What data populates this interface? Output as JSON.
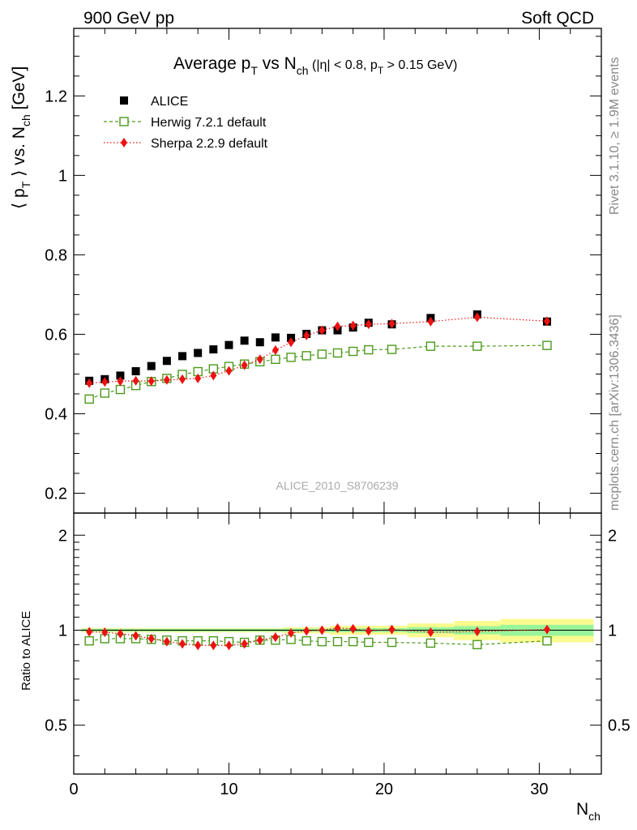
{
  "header": {
    "left": "900 GeV pp",
    "right": "Soft QCD"
  },
  "side_labels": {
    "rivet": "Rivet 3.1.10, ≥ 1.9M events",
    "mcplots": "mcplots.cern.ch [arXiv:1306.3436]"
  },
  "watermark": "ALICE_2010_S8706239",
  "chart_data": [
    {
      "type": "scatter",
      "panel": "main",
      "title": {
        "main": "Average p",
        "sub_t": "T",
        "vs": " vs N",
        "sub_ch": "ch",
        "cuts": " (|η| < 0.8, p",
        "cuts_sub": "T",
        "cuts_end": " > 0.15 GeV)"
      },
      "ylabel": {
        "open": "⟨ p",
        "sub_t": "T",
        "mid": " ⟩ vs. N",
        "sub_ch": "ch",
        "end": " [GeV]"
      },
      "xlim": [
        0,
        34
      ],
      "ylim": [
        0.15,
        1.37
      ],
      "xticks": [
        0,
        10,
        20,
        30
      ],
      "yticks": [
        0.2,
        0.4,
        0.6,
        0.8,
        1,
        1.2
      ],
      "ytick_labels": [
        "0.2",
        "0.4",
        "0.6",
        "0.8",
        "1",
        "1.2"
      ],
      "legend_position": "top-left",
      "series": [
        {
          "name": "ALICE",
          "color": "#000000",
          "marker": "filled-square",
          "x": [
            1,
            2,
            3,
            4,
            5,
            6,
            7,
            8,
            9,
            10,
            11,
            12,
            13,
            14,
            15,
            16,
            17,
            18,
            19,
            20.5,
            23,
            26,
            30.5
          ],
          "y": [
            0.483,
            0.487,
            0.496,
            0.507,
            0.52,
            0.533,
            0.545,
            0.553,
            0.562,
            0.573,
            0.584,
            0.58,
            0.592,
            0.591,
            0.601,
            0.61,
            0.61,
            0.617,
            0.629,
            0.625,
            0.641,
            0.65,
            0.632
          ]
        },
        {
          "name": "Herwig 7.2.1 default",
          "color": "#4c9a1c",
          "marker": "open-square",
          "line": "dashed",
          "x": [
            1,
            2,
            3,
            4,
            5,
            6,
            7,
            8,
            9,
            10,
            11,
            12,
            13,
            14,
            15,
            16,
            17,
            18,
            19,
            20.5,
            23,
            26,
            30.5
          ],
          "y": [
            0.437,
            0.452,
            0.461,
            0.471,
            0.481,
            0.489,
            0.499,
            0.506,
            0.513,
            0.519,
            0.525,
            0.531,
            0.537,
            0.542,
            0.546,
            0.55,
            0.553,
            0.557,
            0.561,
            0.562,
            0.57,
            0.57,
            0.572
          ]
        },
        {
          "name": "Sherpa 2.2.9 default",
          "color": "#ee1111",
          "marker": "filled-diamond",
          "line": "dotted",
          "x": [
            1,
            2,
            3,
            4,
            5,
            6,
            7,
            8,
            9,
            10,
            11,
            12,
            13,
            14,
            15,
            16,
            17,
            18,
            19,
            20.5,
            23,
            26,
            30.5
          ],
          "y": [
            0.477,
            0.48,
            0.482,
            0.483,
            0.482,
            0.485,
            0.487,
            0.489,
            0.496,
            0.508,
            0.522,
            0.537,
            0.56,
            0.58,
            0.597,
            0.61,
            0.62,
            0.622,
            0.625,
            0.627,
            0.632,
            0.643,
            0.633
          ]
        }
      ]
    },
    {
      "type": "scatter",
      "panel": "ratio",
      "ylabel": "Ratio to ALICE",
      "xlabel": {
        "base": "N",
        "sub": "ch"
      },
      "xlim": [
        0,
        34
      ],
      "ylim": [
        0.35,
        2.35
      ],
      "log_y": true,
      "xticks": [
        0,
        10,
        20,
        30
      ],
      "xtick_labels": [
        "0",
        "10",
        "20",
        "30"
      ],
      "yticks": [
        0.5,
        1,
        2
      ],
      "ytick_labels": [
        "0.5",
        "1",
        "2"
      ],
      "uncertainty_bands": {
        "inner_color": "#99f599",
        "outer_color": "#fbfb8f",
        "bins": [
          {
            "x0": 0.5,
            "x1": 13.5,
            "inner": 0.01,
            "outer": 0.016
          },
          {
            "x0": 13.5,
            "x1": 16.5,
            "inner": 0.012,
            "outer": 0.022
          },
          {
            "x0": 16.5,
            "x1": 21.5,
            "inner": 0.015,
            "outer": 0.033
          },
          {
            "x0": 21.5,
            "x1": 24.5,
            "inner": 0.022,
            "outer": 0.05
          },
          {
            "x0": 24.5,
            "x1": 27.5,
            "inner": 0.03,
            "outer": 0.07
          },
          {
            "x0": 27.5,
            "x1": 33.5,
            "inner": 0.04,
            "outer": 0.085
          }
        ]
      },
      "series": [
        {
          "name": "Herwig 7.2.1 default",
          "color": "#4c9a1c",
          "marker": "open-square",
          "line": "dashed",
          "x": [
            1,
            2,
            3,
            4,
            5,
            6,
            7,
            8,
            9,
            10,
            11,
            12,
            13,
            14,
            15,
            16,
            17,
            18,
            19,
            20.5,
            23,
            26,
            30.5
          ],
          "y": [
            0.925,
            0.94,
            0.94,
            0.94,
            0.935,
            0.93,
            0.925,
            0.925,
            0.925,
            0.92,
            0.915,
            0.93,
            0.93,
            0.935,
            0.925,
            0.92,
            0.92,
            0.92,
            0.915,
            0.915,
            0.91,
            0.9,
            0.925
          ]
        },
        {
          "name": "Sherpa 2.2.9 default",
          "color": "#ee1111",
          "marker": "filled-diamond",
          "line": "dotted",
          "x": [
            1,
            2,
            3,
            4,
            5,
            6,
            7,
            8,
            9,
            10,
            11,
            12,
            13,
            14,
            15,
            16,
            17,
            18,
            19,
            20.5,
            23,
            26,
            30.5
          ],
          "y": [
            0.988,
            0.985,
            0.975,
            0.96,
            0.94,
            0.92,
            0.905,
            0.895,
            0.895,
            0.895,
            0.905,
            0.93,
            0.95,
            0.98,
            0.995,
            1.0,
            1.015,
            1.01,
            0.995,
            1.005,
            0.985,
            0.99,
            1.005
          ]
        }
      ]
    }
  ]
}
